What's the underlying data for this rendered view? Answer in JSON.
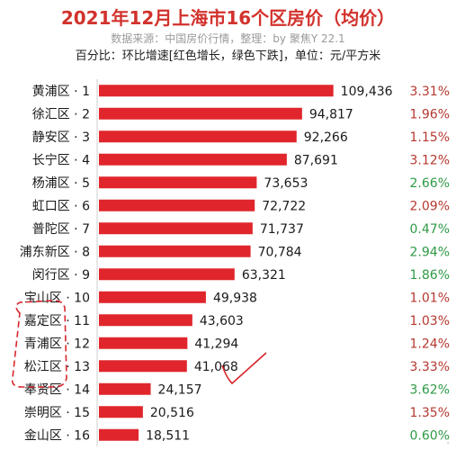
{
  "header": {
    "title": "2021年12月上海市16个区房价（均价）",
    "source": "数据来源：中国房价行情，整理：by 聚焦Y 22.1",
    "note": "百分比：环比增速[红色增长，绿色下跌]，单位：元/平方米"
  },
  "colors": {
    "bar": "#e0262c",
    "increase": "#b5382f",
    "decrease": "#2e9a45",
    "annotation": "#d8262c"
  },
  "chart_data": {
    "type": "bar",
    "orientation": "horizontal",
    "categories": [
      "黄浦区 · 1",
      "徐汇区 · 2",
      "静安区 · 3",
      "长宁区 · 4",
      "杨浦区 · 5",
      "虹口区 · 6",
      "普陀区 · 7",
      "浦东新区 · 8",
      "闵行区 · 9",
      "宝山区 · 10",
      "嘉定区 · 11",
      "青浦区 · 12",
      "松江区 · 13",
      "奉贤区 · 14",
      "崇明区 · 15",
      "金山区 · 16"
    ],
    "values": [
      109436,
      94817,
      92266,
      87691,
      73653,
      72722,
      71737,
      70784,
      63321,
      49938,
      43603,
      41294,
      41068,
      24157,
      20516,
      18511
    ],
    "value_labels": [
      "109,436",
      "94,817",
      "92,266",
      "87,691",
      "73,653",
      "72,722",
      "71,737",
      "70,784",
      "63,321",
      "49,938",
      "43,603",
      "41,294",
      "41,068",
      "24,157",
      "20,516",
      "18,511"
    ],
    "percent_labels": [
      "3.31%",
      "1.96%",
      "1.15%",
      "3.12%",
      "2.66%",
      "2.09%",
      "0.47%",
      "2.94%",
      "1.86%",
      "1.01%",
      "1.03%",
      "1.24%",
      "3.33%",
      "3.62%",
      "1.35%",
      "0.60%"
    ],
    "percent_trend": [
      "up",
      "up",
      "up",
      "up",
      "down",
      "up",
      "down",
      "down",
      "down",
      "up",
      "up",
      "up",
      "up",
      "down",
      "up",
      "down"
    ],
    "xlim": [
      0,
      110000
    ],
    "annotations": [
      "dashed-circle around 嘉定区, 青浦区, 松江区",
      "check mark next to 41,068"
    ]
  }
}
